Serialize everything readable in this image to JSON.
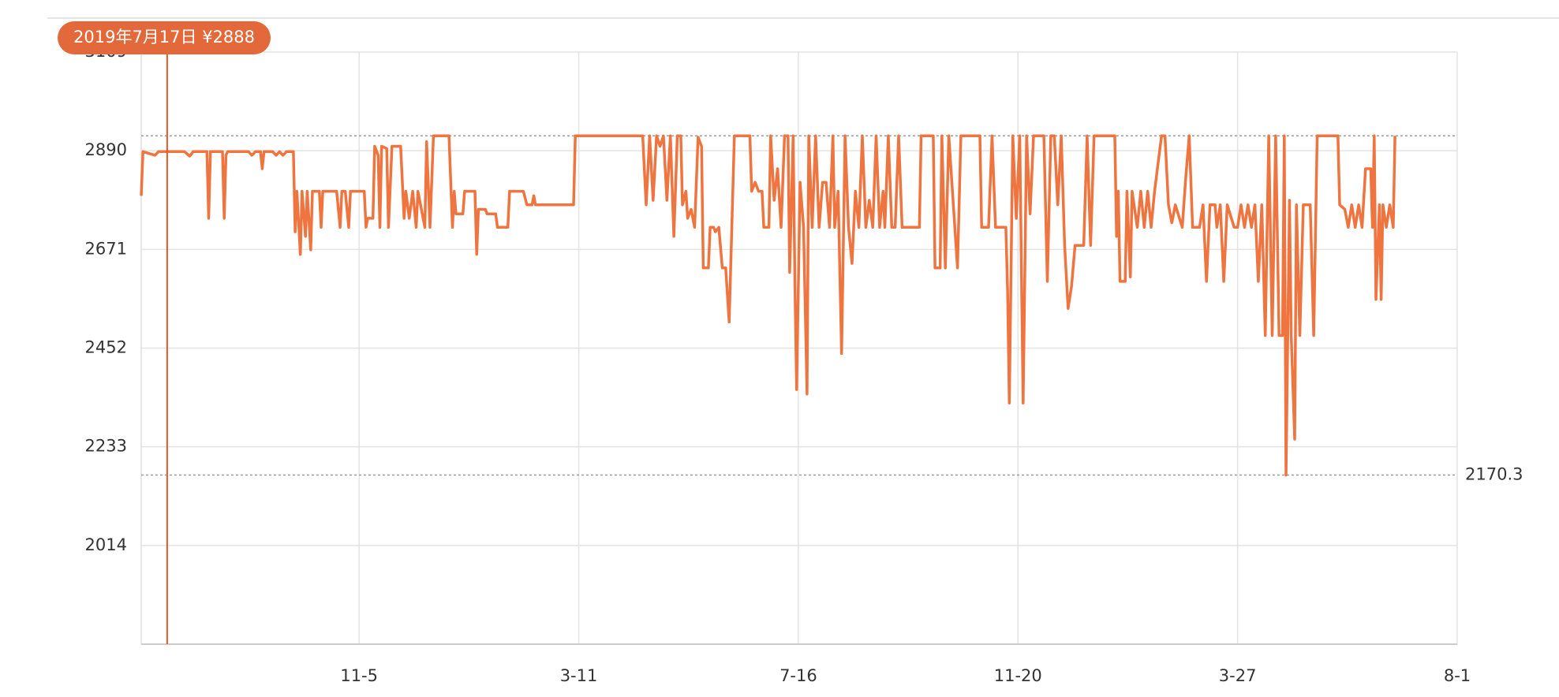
{
  "chart_data": {
    "type": "line",
    "x": [
      0,
      1,
      8,
      10,
      25,
      28,
      30,
      38,
      39,
      40,
      47,
      48,
      49,
      50,
      62,
      64,
      66,
      69,
      70,
      71,
      76,
      78,
      80,
      82,
      84,
      88,
      89,
      90,
      92,
      93,
      95,
      96,
      98,
      99,
      103,
      104,
      105,
      113,
      115,
      116,
      118,
      120,
      121,
      129,
      130,
      131,
      134,
      135,
      137,
      138,
      139,
      142,
      143,
      145,
      150,
      152,
      153,
      155,
      157,
      159,
      160,
      164,
      165,
      167,
      169,
      178,
      180,
      181,
      182,
      186,
      187,
      193,
      194,
      195,
      199,
      200,
      205,
      206,
      212,
      213,
      221,
      223,
      226,
      227,
      228,
      250,
      251,
      290,
      292,
      294,
      296,
      298,
      300,
      302,
      304,
      306,
      308,
      310,
      312,
      313,
      315,
      316,
      318,
      320,
      322,
      324,
      325,
      328,
      329,
      331,
      332,
      334,
      336,
      338,
      340,
      343,
      352,
      353,
      355,
      357,
      359,
      360,
      363,
      364,
      366,
      368,
      370,
      372,
      374,
      375,
      377,
      378,
      379,
      381,
      383,
      385,
      386,
      388,
      390,
      392,
      394,
      396,
      398,
      400,
      401,
      403,
      405,
      407,
      409,
      411,
      413,
      415,
      417,
      419,
      421,
      423,
      425,
      427,
      429,
      430,
      432,
      434,
      436,
      438,
      440,
      450,
      451,
      458,
      459,
      462,
      463,
      465,
      467,
      472,
      474,
      485,
      486,
      490,
      492,
      494,
      500,
      501,
      502,
      504,
      506,
      508,
      510,
      512,
      514,
      516,
      522,
      524,
      526,
      528,
      530,
      532,
      534,
      536,
      538,
      540,
      545,
      547,
      549,
      551,
      563,
      564,
      565,
      566,
      569,
      570,
      572,
      573,
      576,
      578,
      580,
      582,
      584,
      586,
      590,
      592,
      594,
      596,
      598,
      602,
      604,
      606,
      608,
      612,
      614,
      616,
      618,
      621,
      622,
      624,
      626,
      628,
      632,
      634,
      636,
      638,
      640,
      642,
      644,
      646,
      648,
      650,
      652,
      654,
      656,
      658,
      660,
      661,
      662,
      664,
      665,
      667,
      668,
      670,
      672,
      676,
      678,
      680,
      692,
      693,
      696,
      698,
      700,
      702,
      704,
      706,
      708,
      711,
      712,
      713,
      714,
      716,
      717,
      718,
      720,
      722,
      724,
      725
    ],
    "series": [
      {
        "color": "#ee7440",
        "values": [
          2790,
          2888,
          2880,
          2888,
          2888,
          2878,
          2888,
          2888,
          2740,
          2888,
          2888,
          2740,
          2880,
          2888,
          2888,
          2880,
          2888,
          2888,
          2850,
          2888,
          2888,
          2880,
          2888,
          2880,
          2888,
          2888,
          2710,
          2800,
          2660,
          2800,
          2700,
          2800,
          2670,
          2800,
          2800,
          2720,
          2800,
          2800,
          2720,
          2800,
          2800,
          2720,
          2800,
          2800,
          2720,
          2740,
          2740,
          2900,
          2880,
          2720,
          2900,
          2895,
          2720,
          2900,
          2900,
          2740,
          2800,
          2740,
          2800,
          2720,
          2800,
          2720,
          2910,
          2720,
          2923,
          2923,
          2720,
          2800,
          2750,
          2750,
          2800,
          2800,
          2660,
          2760,
          2760,
          2750,
          2750,
          2720,
          2720,
          2800,
          2800,
          2770,
          2770,
          2790,
          2770,
          2770,
          2923,
          2923,
          2770,
          2923,
          2780,
          2923,
          2900,
          2923,
          2780,
          2923,
          2700,
          2923,
          2923,
          2770,
          2800,
          2740,
          2760,
          2720,
          2920,
          2900,
          2630,
          2630,
          2720,
          2720,
          2710,
          2720,
          2630,
          2630,
          2510,
          2923,
          2923,
          2800,
          2820,
          2800,
          2800,
          2720,
          2720,
          2923,
          2780,
          2850,
          2720,
          2923,
          2923,
          2620,
          2923,
          2600,
          2360,
          2820,
          2720,
          2350,
          2923,
          2720,
          2923,
          2720,
          2820,
          2820,
          2720,
          2923,
          2720,
          2800,
          2440,
          2923,
          2720,
          2640,
          2800,
          2720,
          2923,
          2720,
          2780,
          2720,
          2923,
          2720,
          2800,
          2720,
          2923,
          2720,
          2720,
          2923,
          2720,
          2720,
          2923,
          2923,
          2630,
          2630,
          2923,
          2630,
          2923,
          2630,
          2923,
          2923,
          2720,
          2720,
          2923,
          2720,
          2720,
          2580,
          2330,
          2923,
          2740,
          2923,
          2330,
          2923,
          2750,
          2923,
          2923,
          2600,
          2923,
          2923,
          2770,
          2923,
          2680,
          2540,
          2590,
          2680,
          2680,
          2923,
          2680,
          2923,
          2923,
          2700,
          2800,
          2600,
          2600,
          2800,
          2610,
          2800,
          2720,
          2800,
          2720,
          2800,
          2720,
          2800,
          2923,
          2923,
          2770,
          2730,
          2770,
          2720,
          2830,
          2923,
          2720,
          2720,
          2770,
          2600,
          2770,
          2770,
          2720,
          2770,
          2600,
          2770,
          2720,
          2720,
          2770,
          2720,
          2770,
          2720,
          2770,
          2600,
          2770,
          2480,
          2923,
          2480,
          2923,
          2480,
          2480,
          2923,
          2170.3,
          2780,
          2480,
          2250,
          2770,
          2480,
          2770,
          2770,
          2480,
          2923,
          2923,
          2770,
          2760,
          2720,
          2770,
          2720,
          2770,
          2720,
          2850,
          2850,
          2720,
          2923,
          2560,
          2770,
          2560,
          2770,
          2720,
          2770,
          2720,
          2923
        ]
      }
    ],
    "xlim": [
      0,
      761
    ],
    "xticks": [
      {
        "value": 126,
        "label": "11-5"
      },
      {
        "value": 253,
        "label": "3-11"
      },
      {
        "value": 380,
        "label": "7-16"
      },
      {
        "value": 507,
        "label": "11-20"
      },
      {
        "value": 634,
        "label": "3-27"
      },
      {
        "value": 761,
        "label": "8-1"
      }
    ],
    "ylim": [
      1795,
      3109
    ],
    "yticks": [
      2014,
      2233,
      2452,
      2671,
      2890,
      3109
    ],
    "grid": true,
    "max_line": 2923,
    "min_line": 2170.3,
    "tooltip": {
      "x": 15,
      "label": "2019年7月17日 ¥2888"
    }
  }
}
